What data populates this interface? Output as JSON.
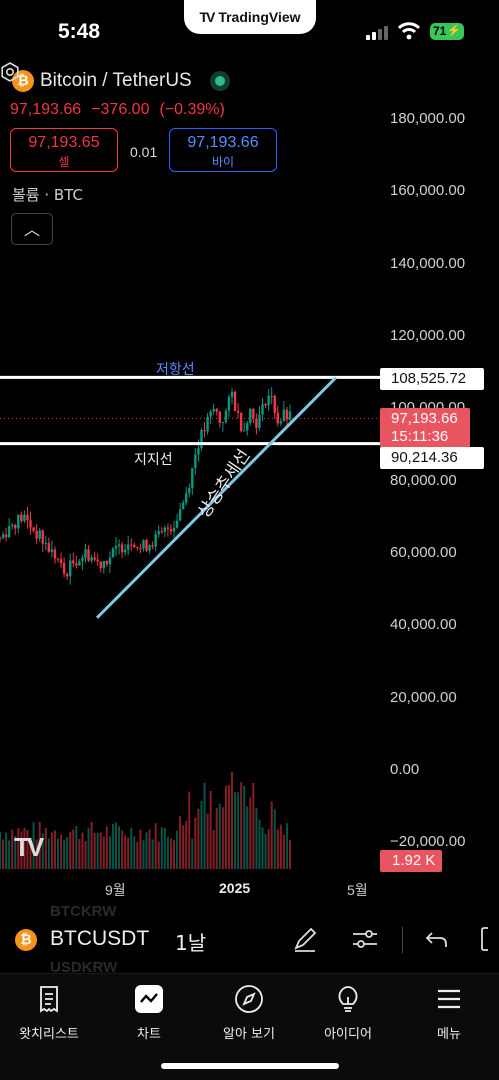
{
  "status_bar": {
    "time": "5:48",
    "brand": "TradingView",
    "battery": "71"
  },
  "header": {
    "coin_glyph": "₿",
    "symbol_name": "Bitcoin / TetherUS",
    "last_price": "97,193.66",
    "change": "−376.00",
    "change_pct": "(−0.39%)",
    "sell_price": "97,193.65",
    "sell_label": "셀",
    "spread": "0.01",
    "buy_price": "97,193.66",
    "buy_label": "바이",
    "volume_label": "볼륨 · BTC",
    "collapse_glyph": "︿"
  },
  "chart": {
    "watermark": "TV",
    "y_axis_labels": [
      "180,000.00",
      "160,000.00",
      "140,000.00",
      "120,000.00",
      "100,000.00",
      "80,000.00",
      "60,000.00",
      "40,000.00",
      "20,000.00",
      "0.00",
      "−20,000.00"
    ],
    "x_axis_labels": [
      "9월",
      "2025",
      "5월"
    ],
    "resistance_value": "108,525.72",
    "support_value": "90,214.36",
    "current_price": "97,193.66",
    "countdown": "15:11:36",
    "volume_value": "1.92 K",
    "annotations": {
      "resistance": "저항선",
      "support": "지지선",
      "trendline": "상승추세선"
    },
    "colors": {
      "up": "#089981",
      "down": "#f23645",
      "trendline": "#7ec8e3",
      "level": "#ffffff"
    }
  },
  "chart_data": {
    "type": "candlestick",
    "symbol": "BTCUSDT",
    "interval": "1날",
    "ylim": [
      -20000,
      180000
    ],
    "x_range": [
      "2024-07",
      "2025-05"
    ],
    "close_path": [
      [
        0,
        64000
      ],
      [
        4,
        68000
      ],
      [
        8,
        70000
      ],
      [
        12,
        66000
      ],
      [
        16,
        62000
      ],
      [
        20,
        58000
      ],
      [
        22,
        54000
      ],
      [
        26,
        58000
      ],
      [
        30,
        60000
      ],
      [
        34,
        57000
      ],
      [
        38,
        59000
      ],
      [
        42,
        62000
      ],
      [
        46,
        64000
      ],
      [
        48,
        61000
      ],
      [
        52,
        63000
      ],
      [
        56,
        65000
      ],
      [
        58,
        67000
      ],
      [
        60,
        68000
      ],
      [
        62,
        72000
      ],
      [
        64,
        76000
      ],
      [
        66,
        82000
      ],
      [
        68,
        90000
      ],
      [
        70,
        93000
      ],
      [
        72,
        97000
      ],
      [
        74,
        100000
      ],
      [
        76,
        96000
      ],
      [
        78,
        99000
      ],
      [
        80,
        104000
      ],
      [
        82,
        98000
      ],
      [
        84,
        94000
      ],
      [
        86,
        100000
      ],
      [
        88,
        96000
      ],
      [
        90,
        98000
      ],
      [
        92,
        104000
      ],
      [
        94,
        102000
      ],
      [
        96,
        96000
      ],
      [
        98,
        98000
      ],
      [
        100,
        97193
      ]
    ],
    "resistance": 108525.72,
    "support": 90214.36,
    "trendline": {
      "from": [
        "2024-08",
        42000
      ],
      "to": [
        "2025-04",
        108500
      ]
    }
  },
  "symbol_bar": {
    "ghost_above": "BTCKRW",
    "ghost_below": "USDKRW",
    "ticker": "BTCUSDT",
    "interval": "1날"
  },
  "nav": {
    "items": [
      {
        "label": "왓치리스트",
        "icon": "watchlist-icon"
      },
      {
        "label": "차트",
        "icon": "chart-icon"
      },
      {
        "label": "알아 보기",
        "icon": "compass-icon"
      },
      {
        "label": "아이디어",
        "icon": "lightbulb-icon"
      },
      {
        "label": "메뉴",
        "icon": "menu-icon"
      }
    ]
  }
}
